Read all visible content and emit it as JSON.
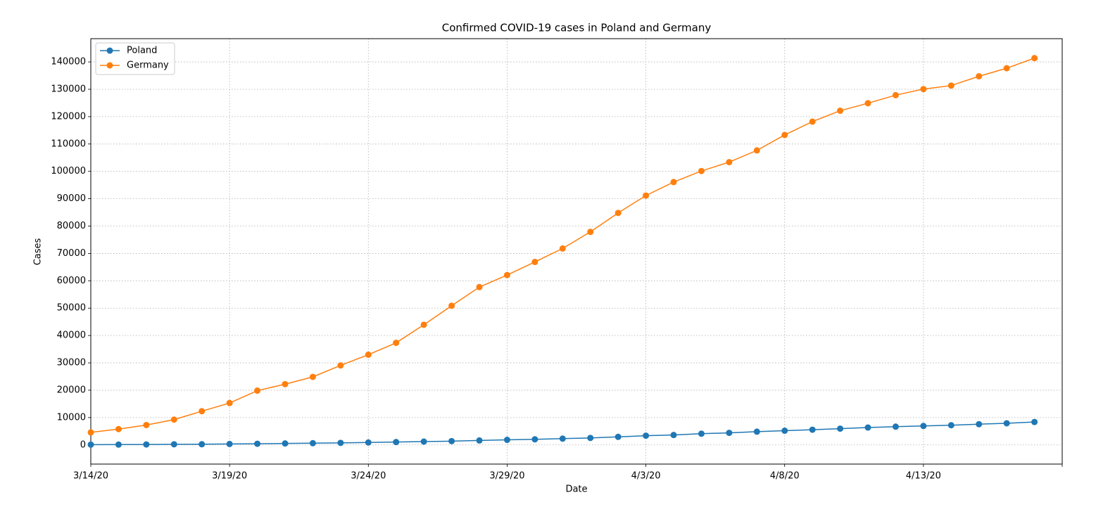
{
  "chart_data": {
    "type": "line",
    "title": "Confirmed COVID-19 cases in Poland and Germany",
    "x_label": "Date",
    "y_label": "Cases",
    "x": [
      "3/14/20",
      "3/15/20",
      "3/16/20",
      "3/17/20",
      "3/18/20",
      "3/19/20",
      "3/20/20",
      "3/21/20",
      "3/22/20",
      "3/23/20",
      "3/24/20",
      "3/25/20",
      "3/26/20",
      "3/27/20",
      "3/28/20",
      "3/29/20",
      "3/30/20",
      "3/31/20",
      "4/1/20",
      "4/2/20",
      "4/3/20",
      "4/4/20",
      "4/5/20",
      "4/6/20",
      "4/7/20",
      "4/8/20",
      "4/9/20",
      "4/10/20",
      "4/11/20",
      "4/12/20",
      "4/13/20",
      "4/14/20",
      "4/15/20",
      "4/16/20",
      "4/17/20"
    ],
    "series": [
      {
        "name": "Poland",
        "color": "#1f77b4",
        "values": [
          103,
          119,
          177,
          238,
          251,
          355,
          425,
          536,
          634,
          749,
          901,
          1051,
          1221,
          1389,
          1638,
          1862,
          2055,
          2311,
          2554,
          2946,
          3383,
          3627,
          4102,
          4413,
          4848,
          5205,
          5575,
          5955,
          6356,
          6674,
          6934,
          7202,
          7582,
          7918,
          8379
        ]
      },
      {
        "name": "Germany",
        "color": "#ff7f0e",
        "values": [
          4585,
          5795,
          7272,
          9257,
          12327,
          15320,
          19848,
          22213,
          24873,
          29056,
          32986,
          37323,
          43938,
          50871,
          57695,
          62095,
          66885,
          71808,
          77872,
          84794,
          91159,
          96092,
          100123,
          103374,
          107663,
          113296,
          118181,
          122171,
          124908,
          127854,
          130072,
          131359,
          134753,
          137698,
          141397
        ]
      }
    ],
    "xlim": [
      "3/14/20",
      "4/18/20"
    ],
    "xticks": [
      "3/14/20",
      "3/19/20",
      "3/24/20",
      "3/29/20",
      "4/3/20",
      "4/8/20",
      "4/13/20"
    ],
    "ylim": [
      -7000,
      148500
    ],
    "yticks": [
      0,
      10000,
      20000,
      30000,
      40000,
      50000,
      60000,
      70000,
      80000,
      90000,
      100000,
      110000,
      120000,
      130000,
      140000
    ],
    "grid": true,
    "legend": "upper left"
  }
}
